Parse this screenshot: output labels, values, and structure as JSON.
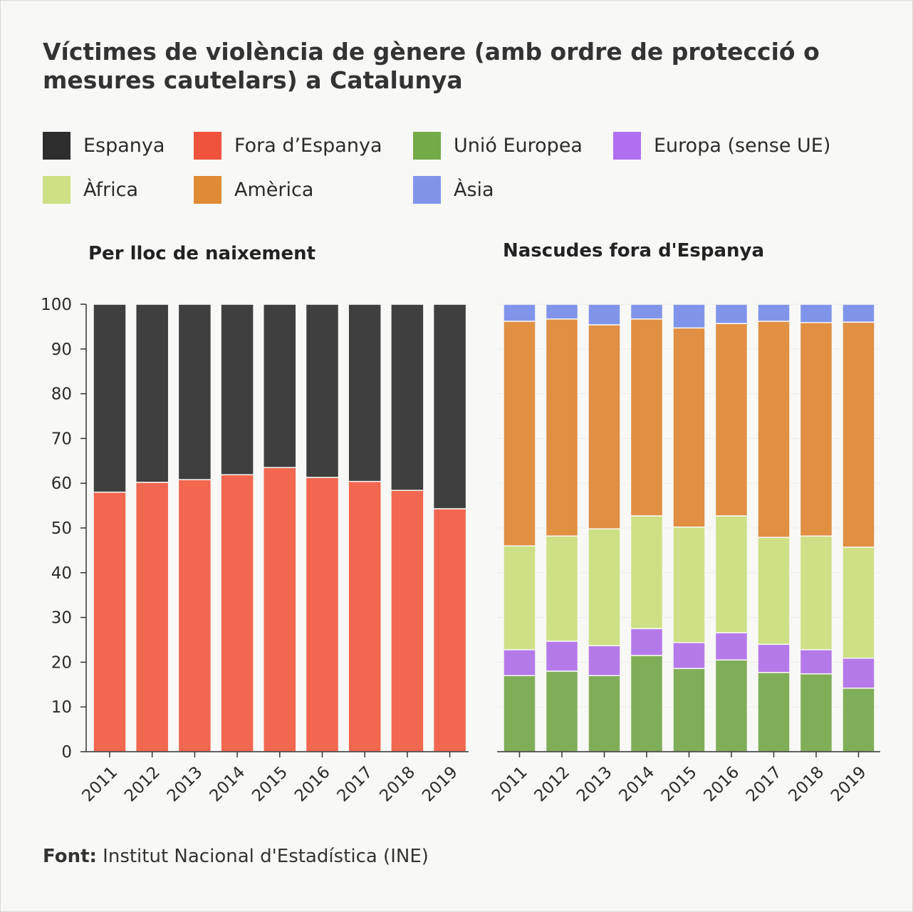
{
  "title": "Víctimes de violència de gènere (amb ordre de protecció o mesures cautelars) a Catalunya",
  "legend": [
    {
      "label": "Espanya",
      "color": "#2d2d2d"
    },
    {
      "label": "Fora d’Espanya",
      "color": "#f0533c"
    },
    {
      "label": "Unió Europea",
      "color": "#74aa47"
    },
    {
      "label": "Europa (sense UE)",
      "color": "#b06ff0"
    },
    {
      "label": "Àfrica",
      "color": "#cde085"
    },
    {
      "label": "Amèrica",
      "color": "#e08a35"
    },
    {
      "label": "Àsia",
      "color": "#8095ea"
    }
  ],
  "source": {
    "label": "Font:",
    "text": "Institut Nacional d'Estadística (INE)"
  },
  "chart_data": [
    {
      "type": "bar",
      "stacked": true,
      "title": "Per lloc de naixement",
      "categories": [
        "2011",
        "2012",
        "2013",
        "2014",
        "2015",
        "2016",
        "2017",
        "2018",
        "2019"
      ],
      "ylim": [
        0,
        100
      ],
      "yticks": [
        0,
        10,
        20,
        30,
        40,
        50,
        60,
        70,
        80,
        90,
        100
      ],
      "series": [
        {
          "name": "Fora d’Espanya",
          "color": "#f2674f",
          "values": [
            58.0,
            60.2,
            60.8,
            61.9,
            63.5,
            61.3,
            60.4,
            58.4,
            54.3
          ]
        },
        {
          "name": "Espanya",
          "color": "#3f3f3f",
          "values": [
            42.0,
            39.8,
            39.2,
            38.1,
            36.5,
            38.7,
            39.6,
            41.6,
            45.7
          ]
        }
      ]
    },
    {
      "type": "bar",
      "stacked": true,
      "title": "Nascudes fora d'Espanya",
      "categories": [
        "2011",
        "2012",
        "2013",
        "2014",
        "2015",
        "2016",
        "2017",
        "2018",
        "2019"
      ],
      "ylim": [
        0,
        100
      ],
      "grid": true,
      "series": [
        {
          "name": "Unió Europea",
          "color": "#80ae58",
          "values": [
            17.0,
            18.0,
            17.0,
            21.5,
            18.6,
            20.5,
            17.7,
            17.4,
            14.2
          ]
        },
        {
          "name": "Europa (sense UE)",
          "color": "#b57ae9",
          "values": [
            5.8,
            6.7,
            6.7,
            6.0,
            5.8,
            6.1,
            6.3,
            5.4,
            6.7
          ]
        },
        {
          "name": "Àfrica",
          "color": "#cde085",
          "values": [
            23.2,
            23.5,
            26.1,
            25.2,
            25.8,
            26.1,
            23.9,
            25.4,
            24.8
          ]
        },
        {
          "name": "Amèrica",
          "color": "#e08f43",
          "values": [
            50.2,
            48.5,
            45.6,
            44.0,
            44.5,
            43.0,
            48.3,
            47.7,
            50.3
          ]
        },
        {
          "name": "Àsia",
          "color": "#8095ea",
          "values": [
            3.8,
            3.3,
            4.6,
            3.3,
            5.3,
            4.3,
            3.8,
            4.1,
            4.0
          ]
        }
      ]
    }
  ]
}
